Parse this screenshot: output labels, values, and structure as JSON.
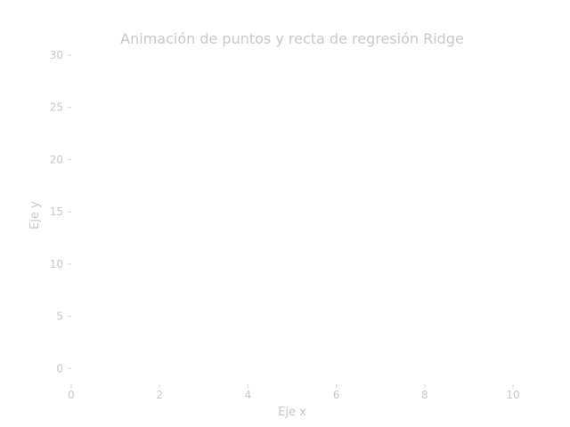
{
  "chart_data": {
    "type": "scatter",
    "title": "Animación de puntos y recta de regresión Ridge",
    "xlabel": "Eje x",
    "ylabel": "Eje y",
    "xlim": [
      0,
      10
    ],
    "ylim": [
      -1.5,
      30
    ],
    "x_ticks": [
      0,
      2,
      4,
      6,
      8,
      10
    ],
    "y_ticks": [
      0,
      5,
      10,
      15,
      20,
      25,
      30
    ],
    "grid": false,
    "series": [],
    "colors": {
      "text": "#c8c8c8",
      "tick": "#d6d6d6",
      "background": "#ffffff"
    }
  }
}
